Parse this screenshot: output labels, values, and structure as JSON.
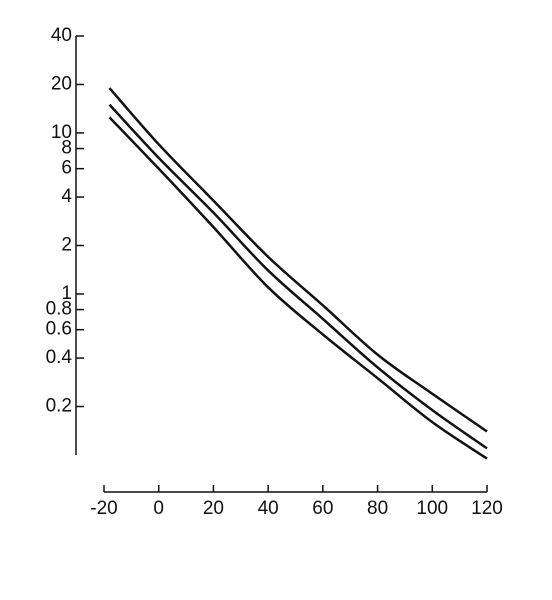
{
  "chart_data": {
    "type": "line",
    "x": [
      -18,
      0,
      20,
      40,
      60,
      80,
      100,
      120
    ],
    "series": [
      {
        "color": "#111111",
        "values": [
          19,
          8.5,
          3.8,
          1.7,
          0.85,
          0.42,
          0.24,
          0.14
        ]
      },
      {
        "color": "#111111",
        "values": [
          15,
          7,
          3.2,
          1.4,
          0.7,
          0.35,
          0.19,
          0.11
        ]
      },
      {
        "color": "#111111",
        "values": [
          12.5,
          6,
          2.6,
          1.1,
          0.56,
          0.3,
          0.16,
          0.095
        ]
      }
    ],
    "xlim": [
      -20,
      120
    ],
    "xticks": [
      -20,
      0,
      20,
      40,
      60,
      80,
      100,
      120
    ],
    "ylim": [
      0.1,
      40
    ],
    "yticks": [
      0.2,
      0.4,
      0.6,
      0.8,
      1,
      2,
      4,
      6,
      8,
      10,
      20,
      40
    ],
    "ylog": true,
    "grid": false
  }
}
